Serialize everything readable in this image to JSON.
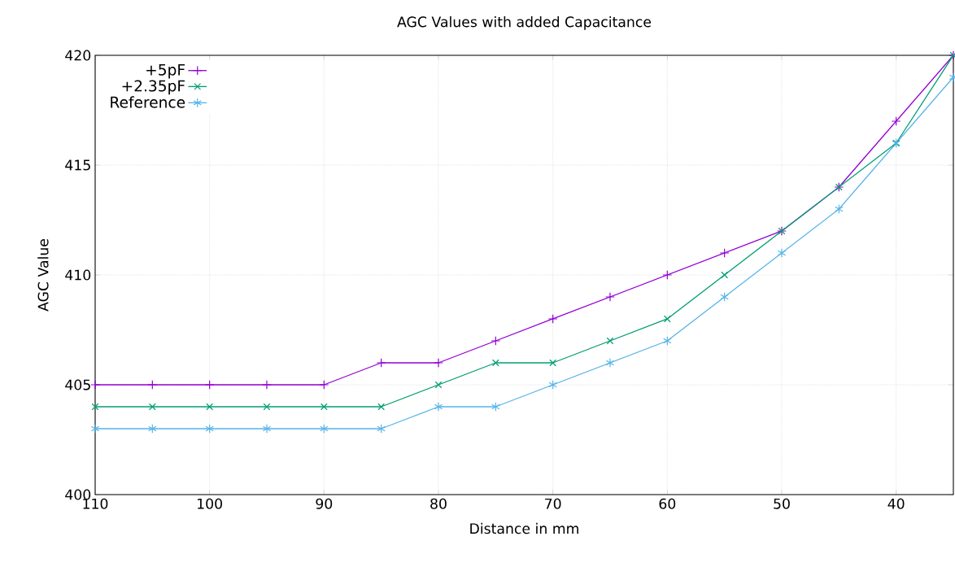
{
  "chart_data": {
    "type": "line",
    "title": "AGC Values with added Capacitance",
    "xlabel": "Distance in mm",
    "ylabel": "AGC Value",
    "x": [
      110,
      105,
      100,
      95,
      90,
      85,
      80,
      75,
      70,
      65,
      60,
      55,
      50,
      45,
      40,
      35
    ],
    "series": [
      {
        "name": "+5pF",
        "color": "#9400d3",
        "marker": "cross",
        "values": [
          405,
          405,
          405,
          405,
          405,
          406,
          406,
          407,
          408,
          409,
          410,
          411,
          412,
          414,
          417,
          420
        ]
      },
      {
        "name": "+2.35pF",
        "color": "#009e73",
        "marker": "cross",
        "values": [
          404,
          404,
          404,
          404,
          404,
          404,
          405,
          406,
          406,
          407,
          408,
          410,
          412,
          414,
          416,
          420
        ]
      },
      {
        "name": "Reference",
        "color": "#56b4e9",
        "marker": "cross",
        "values": [
          403,
          403,
          403,
          403,
          403,
          403,
          404,
          404,
          405,
          406,
          407,
          409,
          411,
          413,
          416,
          419
        ]
      }
    ],
    "xlim": [
      110,
      35
    ],
    "ylim": [
      400,
      420
    ],
    "xticks": [
      110,
      100,
      90,
      80,
      70,
      60,
      50,
      40
    ],
    "yticks": [
      400,
      405,
      410,
      415,
      420
    ],
    "grid": true,
    "legend": "top left",
    "line_style": "solid"
  }
}
